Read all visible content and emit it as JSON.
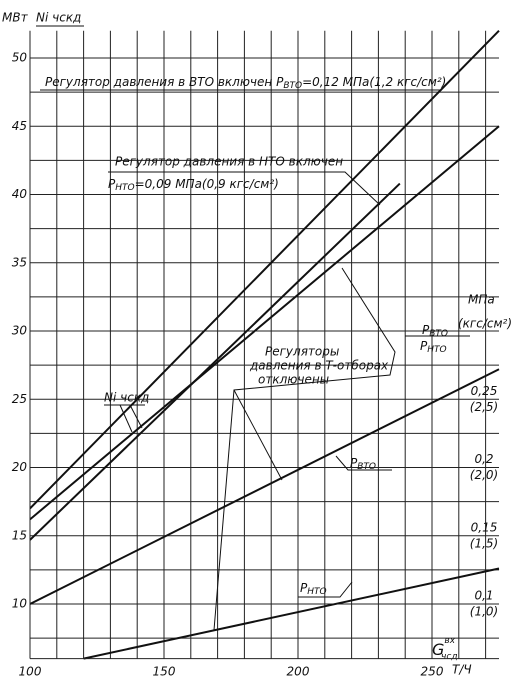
{
  "chart_data": {
    "type": "line",
    "y_unit": "МВт",
    "y_label": "Ni чскд",
    "x_label": {
      "main": "G",
      "sup": "вх",
      "sub": "чсд"
    },
    "x_unit": "Т/Ч",
    "y2_unit": "МПа",
    "y2_unit_alt": "(кгс/см²)",
    "y2_label": [
      {
        "main": "P",
        "sub": "ВТО"
      },
      {
        "main": "P",
        "sub": "НТО"
      }
    ],
    "xlim": [
      100,
      275
    ],
    "ylim": [
      6,
      52
    ],
    "y2lim": [
      0.06,
      0.52
    ],
    "xticks": [
      100,
      150,
      200,
      250
    ],
    "yticks": [
      10,
      15,
      20,
      25,
      30,
      35,
      40,
      45,
      50
    ],
    "y2ticks": [
      {
        "value": 0.1,
        "label": "0,1"
      },
      {
        "value": 0.15,
        "label": "0,15"
      },
      {
        "value": 0.2,
        "label": "0,2"
      },
      {
        "value": 0.25,
        "label": "0,25"
      }
    ],
    "y2ticks_kgf": [
      "(1,0)",
      "(1,5)",
      "(2,0)",
      "(2,5)"
    ],
    "xgrid": [
      110,
      120,
      130,
      140,
      150,
      160,
      170,
      180,
      190,
      200,
      210,
      220,
      230,
      240,
      250,
      260,
      270
    ],
    "ygrid": [
      7.5,
      10,
      12.5,
      15,
      17.5,
      20,
      22.5,
      25,
      27.5,
      30,
      32.5,
      35,
      37.5,
      40,
      42.5,
      45,
      47.5,
      50
    ],
    "series": [
      {
        "color": "#111",
        "x": [
          100,
          275
        ],
        "values": [
          17,
          52
        ]
      },
      {
        "color": "#111",
        "x": [
          100,
          275
        ],
        "values": [
          16.2,
          45
        ]
      },
      {
        "color": "#111",
        "x": [
          100,
          238
        ],
        "values": [
          14.7,
          40.8
        ]
      },
      {
        "color": "#111",
        "axis": "y2",
        "x": [
          100,
          275
        ],
        "values": [
          0.1,
          0.272
        ]
      },
      {
        "color": "#111",
        "axis": "y2",
        "x": [
          120,
          275
        ],
        "values": [
          0.06,
          0.126
        ]
      }
    ],
    "annotations": [
      {
        "text": "Регулятор давления в ВТО включен P",
        "sub": "ВТО",
        "rest": "=0,12 МПа(1,2 кгс/см²)"
      },
      {
        "text": "Регулятор давления в НТО включен"
      },
      {
        "text": "P",
        "sub": "НТО",
        "rest": "=0,09 МПа(0,9 кгс/см²)"
      },
      {
        "text": "Регуляторы"
      },
      {
        "text": "давления в Т-отборах"
      },
      {
        "text": "отключены"
      },
      {
        "text": "Ni чскд"
      },
      {
        "text": "P",
        "sub": "ВТО"
      },
      {
        "text": "P",
        "sub": "НТО"
      }
    ]
  }
}
